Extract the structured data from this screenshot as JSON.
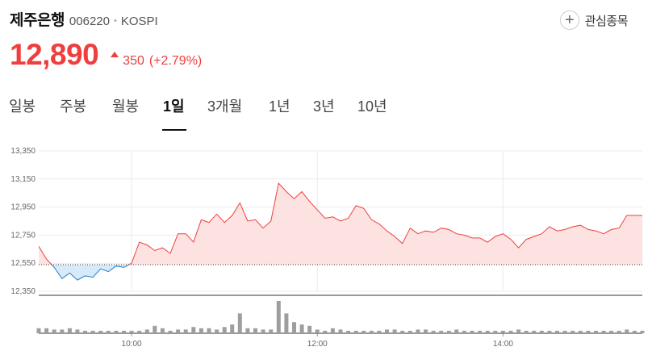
{
  "stock": {
    "name": "제주은행",
    "code": "006220",
    "market": "KOSPI",
    "price": "12,890",
    "change": "350",
    "change_rate": "(+2.79%)",
    "direction": "up",
    "colors": {
      "up": "#f03e3e",
      "down": "#1c7ed6",
      "up_fill": "#fde2e2",
      "down_fill": "#d8e9f8"
    }
  },
  "watchlist": {
    "label": "관심종목",
    "icon": "plus-icon"
  },
  "tabs": [
    {
      "label": "일봉",
      "active": false
    },
    {
      "label": "주봉",
      "active": false
    },
    {
      "label": "월봉",
      "active": false
    },
    {
      "label": "1일",
      "active": true
    },
    {
      "label": "3개월",
      "active": false
    },
    {
      "label": "1년",
      "active": false
    },
    {
      "label": "3년",
      "active": false
    },
    {
      "label": "10년",
      "active": false
    }
  ],
  "chart_data": {
    "type": "line",
    "y_ticks": [
      "13,350",
      "13,150",
      "12,950",
      "12,750",
      "12,550",
      "12,350"
    ],
    "x_ticks": [
      "10:00",
      "12:00",
      "14:00"
    ],
    "ylim": [
      12350,
      13350
    ],
    "xlim": [
      "09:00",
      "15:30"
    ],
    "baseline": 12540,
    "grid": true,
    "price_series": [
      [
        "09:00",
        12670
      ],
      [
        "09:05",
        12580
      ],
      [
        "09:10",
        12520
      ],
      [
        "09:15",
        12440
      ],
      [
        "09:20",
        12480
      ],
      [
        "09:25",
        12430
      ],
      [
        "09:30",
        12460
      ],
      [
        "09:35",
        12450
      ],
      [
        "09:40",
        12510
      ],
      [
        "09:45",
        12490
      ],
      [
        "09:50",
        12530
      ],
      [
        "09:55",
        12520
      ],
      [
        "10:00",
        12550
      ],
      [
        "10:05",
        12700
      ],
      [
        "10:10",
        12680
      ],
      [
        "10:15",
        12640
      ],
      [
        "10:20",
        12660
      ],
      [
        "10:25",
        12620
      ],
      [
        "10:30",
        12760
      ],
      [
        "10:35",
        12760
      ],
      [
        "10:40",
        12700
      ],
      [
        "10:45",
        12860
      ],
      [
        "10:50",
        12840
      ],
      [
        "10:55",
        12900
      ],
      [
        "11:00",
        12840
      ],
      [
        "11:05",
        12890
      ],
      [
        "11:10",
        12980
      ],
      [
        "11:15",
        12850
      ],
      [
        "11:20",
        12860
      ],
      [
        "11:25",
        12800
      ],
      [
        "11:30",
        12850
      ],
      [
        "11:35",
        13120
      ],
      [
        "11:40",
        13060
      ],
      [
        "11:45",
        13010
      ],
      [
        "11:50",
        13060
      ],
      [
        "11:55",
        12990
      ],
      [
        "12:00",
        12930
      ],
      [
        "12:05",
        12870
      ],
      [
        "12:10",
        12880
      ],
      [
        "12:15",
        12850
      ],
      [
        "12:20",
        12870
      ],
      [
        "12:25",
        12960
      ],
      [
        "12:30",
        12940
      ],
      [
        "12:35",
        12860
      ],
      [
        "12:40",
        12830
      ],
      [
        "12:45",
        12780
      ],
      [
        "12:50",
        12740
      ],
      [
        "12:55",
        12690
      ],
      [
        "13:00",
        12800
      ],
      [
        "13:05",
        12760
      ],
      [
        "13:10",
        12780
      ],
      [
        "13:15",
        12770
      ],
      [
        "13:20",
        12800
      ],
      [
        "13:25",
        12790
      ],
      [
        "13:30",
        12760
      ],
      [
        "13:35",
        12750
      ],
      [
        "13:40",
        12730
      ],
      [
        "13:45",
        12730
      ],
      [
        "13:50",
        12700
      ],
      [
        "13:55",
        12740
      ],
      [
        "14:00",
        12760
      ],
      [
        "14:05",
        12720
      ],
      [
        "14:10",
        12660
      ],
      [
        "14:15",
        12720
      ],
      [
        "14:20",
        12740
      ],
      [
        "14:25",
        12760
      ],
      [
        "14:30",
        12810
      ],
      [
        "14:35",
        12780
      ],
      [
        "14:40",
        12790
      ],
      [
        "14:45",
        12810
      ],
      [
        "14:50",
        12820
      ],
      [
        "14:55",
        12790
      ],
      [
        "15:00",
        12780
      ],
      [
        "15:05",
        12760
      ],
      [
        "15:10",
        12790
      ],
      [
        "15:15",
        12800
      ],
      [
        "15:20",
        12890
      ],
      [
        "15:25",
        12890
      ],
      [
        "15:30",
        12890
      ]
    ],
    "volume_series": [
      [
        "09:00",
        2
      ],
      [
        "09:05",
        2
      ],
      [
        "09:10",
        1.5
      ],
      [
        "09:15",
        1.5
      ],
      [
        "09:20",
        2
      ],
      [
        "09:25",
        1.5
      ],
      [
        "09:30",
        1
      ],
      [
        "09:35",
        1
      ],
      [
        "09:40",
        1
      ],
      [
        "09:45",
        1
      ],
      [
        "09:50",
        1
      ],
      [
        "09:55",
        1
      ],
      [
        "10:00",
        1
      ],
      [
        "10:05",
        1
      ],
      [
        "10:10",
        1.5
      ],
      [
        "10:15",
        3
      ],
      [
        "10:20",
        2
      ],
      [
        "10:25",
        1
      ],
      [
        "10:30",
        1.5
      ],
      [
        "10:35",
        1.5
      ],
      [
        "10:40",
        2.5
      ],
      [
        "10:45",
        2
      ],
      [
        "10:50",
        2
      ],
      [
        "10:55",
        1.5
      ],
      [
        "11:00",
        2.5
      ],
      [
        "11:05",
        3.5
      ],
      [
        "11:10",
        8
      ],
      [
        "11:15",
        2
      ],
      [
        "11:20",
        2
      ],
      [
        "11:25",
        1.5
      ],
      [
        "11:30",
        1.5
      ],
      [
        "11:35",
        13
      ],
      [
        "11:40",
        8
      ],
      [
        "11:45",
        4.5
      ],
      [
        "11:50",
        3.5
      ],
      [
        "11:55",
        3
      ],
      [
        "12:00",
        1.5
      ],
      [
        "12:05",
        1
      ],
      [
        "12:10",
        2
      ],
      [
        "12:15",
        1.5
      ],
      [
        "12:20",
        1
      ],
      [
        "12:25",
        1
      ],
      [
        "12:30",
        1
      ],
      [
        "12:35",
        1
      ],
      [
        "12:40",
        1
      ],
      [
        "12:45",
        1.5
      ],
      [
        "12:50",
        1.5
      ],
      [
        "12:55",
        1
      ],
      [
        "13:00",
        1
      ],
      [
        "13:05",
        1.5
      ],
      [
        "13:10",
        1.5
      ],
      [
        "13:15",
        1
      ],
      [
        "13:20",
        1
      ],
      [
        "13:25",
        1
      ],
      [
        "13:30",
        1.5
      ],
      [
        "13:35",
        1
      ],
      [
        "13:40",
        1
      ],
      [
        "13:45",
        1
      ],
      [
        "13:50",
        1
      ],
      [
        "13:55",
        1
      ],
      [
        "14:00",
        1
      ],
      [
        "14:05",
        1
      ],
      [
        "14:10",
        1.5
      ],
      [
        "14:15",
        1
      ],
      [
        "14:20",
        1
      ],
      [
        "14:25",
        1
      ],
      [
        "14:30",
        1
      ],
      [
        "14:35",
        1
      ],
      [
        "14:40",
        1
      ],
      [
        "14:45",
        1
      ],
      [
        "14:50",
        1
      ],
      [
        "14:55",
        1
      ],
      [
        "15:00",
        1
      ],
      [
        "15:05",
        1
      ],
      [
        "15:10",
        1
      ],
      [
        "15:15",
        1
      ],
      [
        "15:20",
        1.5
      ],
      [
        "15:25",
        1
      ],
      [
        "15:30",
        1
      ]
    ]
  }
}
